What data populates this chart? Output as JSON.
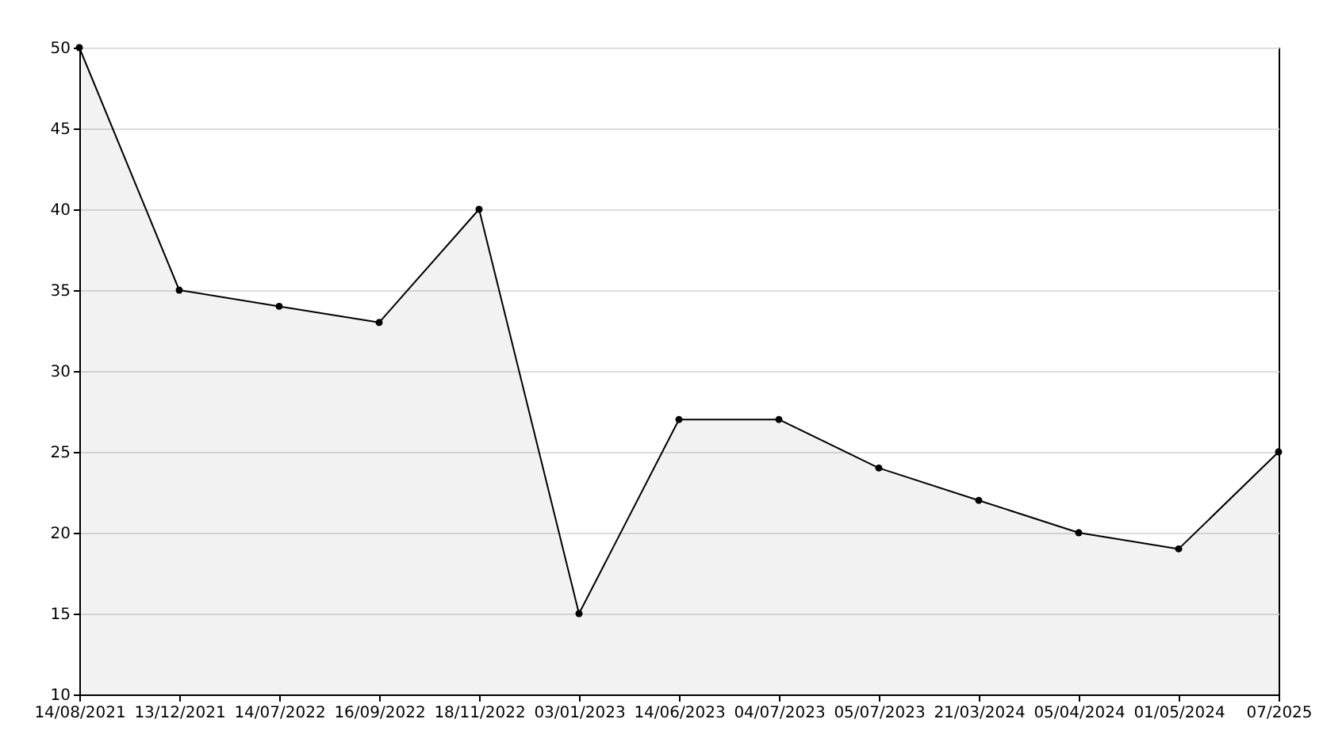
{
  "chart_data": {
    "type": "area",
    "categories": [
      "14/08/2021",
      "13/12/2021",
      "14/07/2022",
      "16/09/2022",
      "18/11/2022",
      "03/01/2023",
      "14/06/2023",
      "04/07/2023",
      "05/07/2023",
      "21/03/2024",
      "05/04/2024",
      "01/05/2024",
      "07/2025"
    ],
    "series": [
      {
        "color": "#000000",
        "values": [
          50,
          35,
          34,
          33,
          40,
          15,
          27,
          27,
          24,
          22,
          20,
          19,
          25
        ]
      }
    ],
    "ylim": [
      10,
      50
    ],
    "yticks": [
      10,
      15,
      20,
      25,
      30,
      35,
      40,
      45,
      50
    ],
    "grid": "y",
    "marker": "circle",
    "line_style": "solid"
  }
}
